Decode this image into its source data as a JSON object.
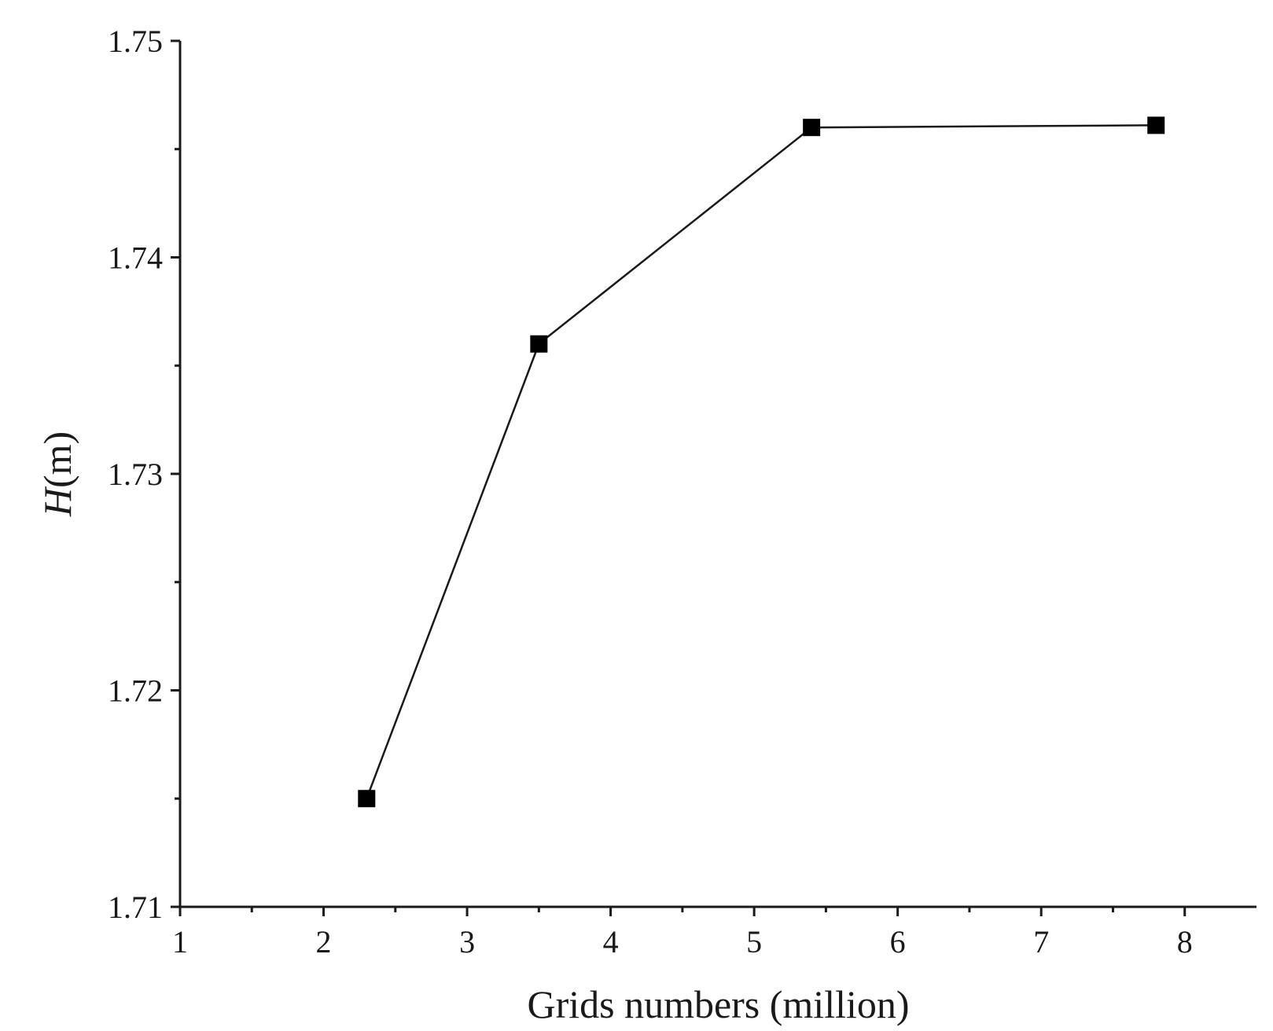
{
  "chart_data": {
    "type": "line",
    "xlabel": "Grids numbers (million)",
    "ylabel_var": "H",
    "ylabel_unit": "(m)",
    "xlim": [
      1,
      8.5
    ],
    "ylim": [
      1.71,
      1.75
    ],
    "x_ticks": [
      1,
      2,
      3,
      4,
      5,
      6,
      7,
      8
    ],
    "x_minor_ticks": [
      1.5,
      2.5,
      3.5,
      4.5,
      5.5,
      6.5,
      7.5
    ],
    "y_ticks": [
      1.71,
      1.72,
      1.73,
      1.74,
      1.75
    ],
    "y_tick_labels": [
      "1.71",
      "1.72",
      "1.73",
      "1.74",
      "1.75"
    ],
    "y_minor_ticks": [
      1.715,
      1.725,
      1.735,
      1.745
    ],
    "grid": false,
    "legend": "none",
    "marker": "square",
    "color": "#000000",
    "series": [
      {
        "x": [
          2.3,
          3.5,
          5.4,
          7.8
        ],
        "y": [
          1.715,
          1.736,
          1.746,
          1.7461
        ]
      }
    ]
  }
}
